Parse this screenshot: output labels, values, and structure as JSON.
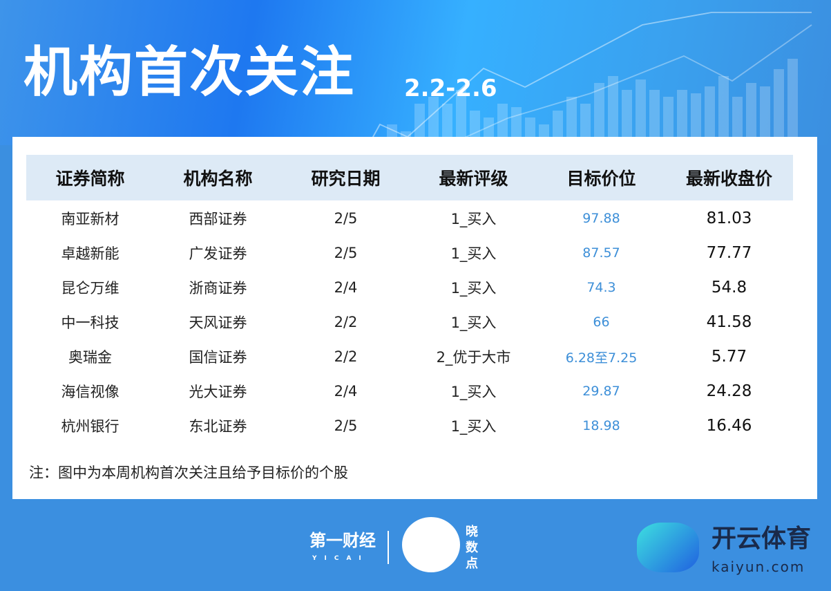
{
  "header": {
    "title": "机构首次关注",
    "date_range": "2.2-2.6"
  },
  "table": {
    "columns": [
      "证券简称",
      "机构名称",
      "研究日期",
      "最新评级",
      "目标价位",
      "最新收盘价"
    ],
    "rows": [
      [
        "南亚新材",
        "西部证券",
        "2/5",
        "1_买入",
        "97.88",
        "81.03"
      ],
      [
        "卓越新能",
        "广发证券",
        "2/5",
        "1_买入",
        "87.57",
        "77.77"
      ],
      [
        "昆仑万维",
        "浙商证券",
        "2/4",
        "1_买入",
        "74.3",
        "54.8"
      ],
      [
        "中一科技",
        "天风证券",
        "2/2",
        "1_买入",
        "66",
        "41.58"
      ],
      [
        "奥瑞金",
        "国信证券",
        "2/2",
        "2_优于大市",
        "6.28至7.25",
        "5.77"
      ],
      [
        "海信视像",
        "光大证券",
        "2/4",
        "1_买入",
        "29.87",
        "24.28"
      ],
      [
        "杭州银行",
        "东北证券",
        "2/5",
        "1_买入",
        "18.98",
        "16.46"
      ]
    ]
  },
  "note": "注：图中为本周机构首次关注且给予目标价的个股",
  "footer": {
    "yicai": "第一财经",
    "yicai_sub": "YICAI",
    "xiaoshudian": "晓数点",
    "kaiyun": "开云体育",
    "kaiyun_url": "kaiyun.com"
  },
  "colors": {
    "background": "#3b8fe0",
    "header_row": "#ddeaf6",
    "target_price": "#3d8fd8"
  }
}
